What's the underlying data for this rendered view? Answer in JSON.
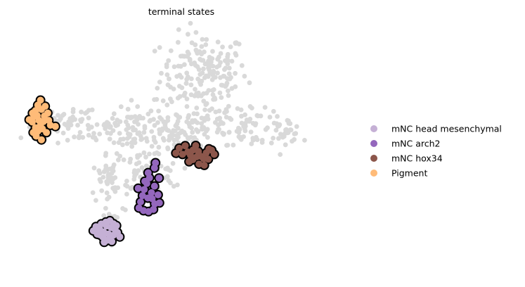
{
  "chart_data": {
    "type": "scatter",
    "title": "terminal states",
    "xlabel": "",
    "ylabel": "",
    "axes_visible": false,
    "grid": false,
    "xlim": [
      0,
      100
    ],
    "ylim": [
      0,
      100
    ],
    "legend": {
      "position": "right",
      "entries": [
        {
          "name": "mNC head mesenchymal",
          "color": "#c5b0d5"
        },
        {
          "name": "mNC arch2",
          "color": "#9467bd"
        },
        {
          "name": "mNC hox34",
          "color": "#8c564b"
        },
        {
          "name": "Pigment",
          "color": "#ffbb78"
        }
      ]
    },
    "background_color": "#d9d9d9",
    "background_groups": [
      {
        "cx": 57.5,
        "cy": 82,
        "sx": 6.5,
        "sy": 8,
        "n": 170
      },
      {
        "cx": 36,
        "cy": 59,
        "sx": 8,
        "sy": 5,
        "n": 110
      },
      {
        "cx": 16,
        "cy": 60,
        "sx": 7,
        "sy": 2.8,
        "n": 55
      },
      {
        "cx": 49,
        "cy": 57,
        "sx": 5.5,
        "sy": 6,
        "n": 70
      },
      {
        "cx": 63,
        "cy": 60,
        "sx": 6,
        "sy": 5,
        "n": 60
      },
      {
        "cx": 73,
        "cy": 59,
        "sx": 5,
        "sy": 3.5,
        "n": 40
      },
      {
        "cx": 82,
        "cy": 58,
        "sx": 2.5,
        "sy": 2.5,
        "n": 30
      },
      {
        "cx": 40,
        "cy": 40,
        "sx": 5,
        "sy": 5,
        "n": 70
      },
      {
        "cx": 29,
        "cy": 37,
        "sx": 3,
        "sy": 5,
        "n": 45
      },
      {
        "cx": 30,
        "cy": 22,
        "sx": 2.5,
        "sy": 4,
        "n": 20
      }
    ],
    "series": [
      {
        "name": "mNC head mesenchymal",
        "color": "#c5b0d5",
        "points": [
          [
            24.0,
            16.5
          ],
          [
            24.8,
            18.2
          ],
          [
            25.9,
            17.3
          ],
          [
            26.4,
            19.3
          ],
          [
            27.1,
            16.0
          ],
          [
            28.0,
            18.5
          ],
          [
            28.6,
            15.2
          ],
          [
            29.4,
            17.8
          ],
          [
            30.0,
            14.6
          ],
          [
            30.6,
            16.9
          ],
          [
            31.3,
            15.8
          ],
          [
            32.0,
            14.0
          ],
          [
            25.2,
            15.1
          ],
          [
            26.9,
            13.9
          ],
          [
            27.8,
            20.1
          ],
          [
            29.0,
            20.6
          ],
          [
            30.1,
            19.4
          ],
          [
            31.0,
            18.6
          ],
          [
            28.3,
            12.6
          ],
          [
            29.6,
            12.1
          ],
          [
            27.3,
            11.8
          ],
          [
            26.0,
            14.8
          ],
          [
            29.0,
            14.4
          ]
        ]
      },
      {
        "name": "mNC arch2",
        "color": "#9467bd",
        "points": [
          [
            37.8,
            25.9
          ],
          [
            38.3,
            28.4
          ],
          [
            38.9,
            31.0
          ],
          [
            39.4,
            33.5
          ],
          [
            40.2,
            36.0
          ],
          [
            41.0,
            38.3
          ],
          [
            42.5,
            34.9
          ],
          [
            41.6,
            32.2
          ],
          [
            41.8,
            29.7
          ],
          [
            42.6,
            27.6
          ],
          [
            42.2,
            25.3
          ],
          [
            40.7,
            24.4
          ],
          [
            39.2,
            24.8
          ],
          [
            40.5,
            30.0
          ],
          [
            39.6,
            36.9
          ],
          [
            40.6,
            40.4
          ],
          [
            42.5,
            42.4
          ],
          [
            43.9,
            38.2
          ],
          [
            43.6,
            31.3
          ],
          [
            44.0,
            28.0
          ],
          [
            37.6,
            34.0
          ],
          [
            42.8,
            44.5
          ]
        ]
      },
      {
        "name": "mNC hox34",
        "color": "#8c564b",
        "points": [
          [
            49.0,
            48.5
          ],
          [
            50.0,
            50.5
          ],
          [
            51.0,
            48.0
          ],
          [
            51.8,
            51.5
          ],
          [
            52.6,
            49.0
          ],
          [
            53.4,
            47.6
          ],
          [
            54.2,
            49.8
          ],
          [
            55.0,
            51.6
          ],
          [
            55.8,
            49.2
          ],
          [
            56.6,
            47.2
          ],
          [
            57.4,
            46.2
          ],
          [
            58.2,
            48.6
          ],
          [
            59.0,
            50.2
          ],
          [
            59.8,
            49.7
          ],
          [
            60.6,
            48.0
          ],
          [
            55.3,
            47.0
          ],
          [
            54.1,
            45.8
          ],
          [
            56.0,
            44.0
          ],
          [
            57.6,
            43.5
          ],
          [
            53.0,
            45.0
          ],
          [
            58.8,
            46.0
          ]
        ]
      },
      {
        "name": "Pigment",
        "color": "#ffbb78",
        "points": [
          [
            5.5,
            61.3
          ],
          [
            6.0,
            63.5
          ],
          [
            6.5,
            66.0
          ],
          [
            7.0,
            64.0
          ],
          [
            7.5,
            62.0
          ],
          [
            8.0,
            60.0
          ],
          [
            6.5,
            59.0
          ],
          [
            5.8,
            57.0
          ],
          [
            7.2,
            57.5
          ],
          [
            8.6,
            58.5
          ],
          [
            8.9,
            61.5
          ],
          [
            9.2,
            63.8
          ],
          [
            8.3,
            66.5
          ],
          [
            7.2,
            68.3
          ],
          [
            8.0,
            70.3
          ],
          [
            9.4,
            67.8
          ],
          [
            10.2,
            65.0
          ],
          [
            10.5,
            62.0
          ],
          [
            6.7,
            55.5
          ],
          [
            8.3,
            54.0
          ],
          [
            9.8,
            57.0
          ],
          [
            11.0,
            60.0
          ],
          [
            4.6,
            62.3
          ],
          [
            5.6,
            65.0
          ],
          [
            12.5,
            59.5
          ]
        ]
      }
    ]
  }
}
